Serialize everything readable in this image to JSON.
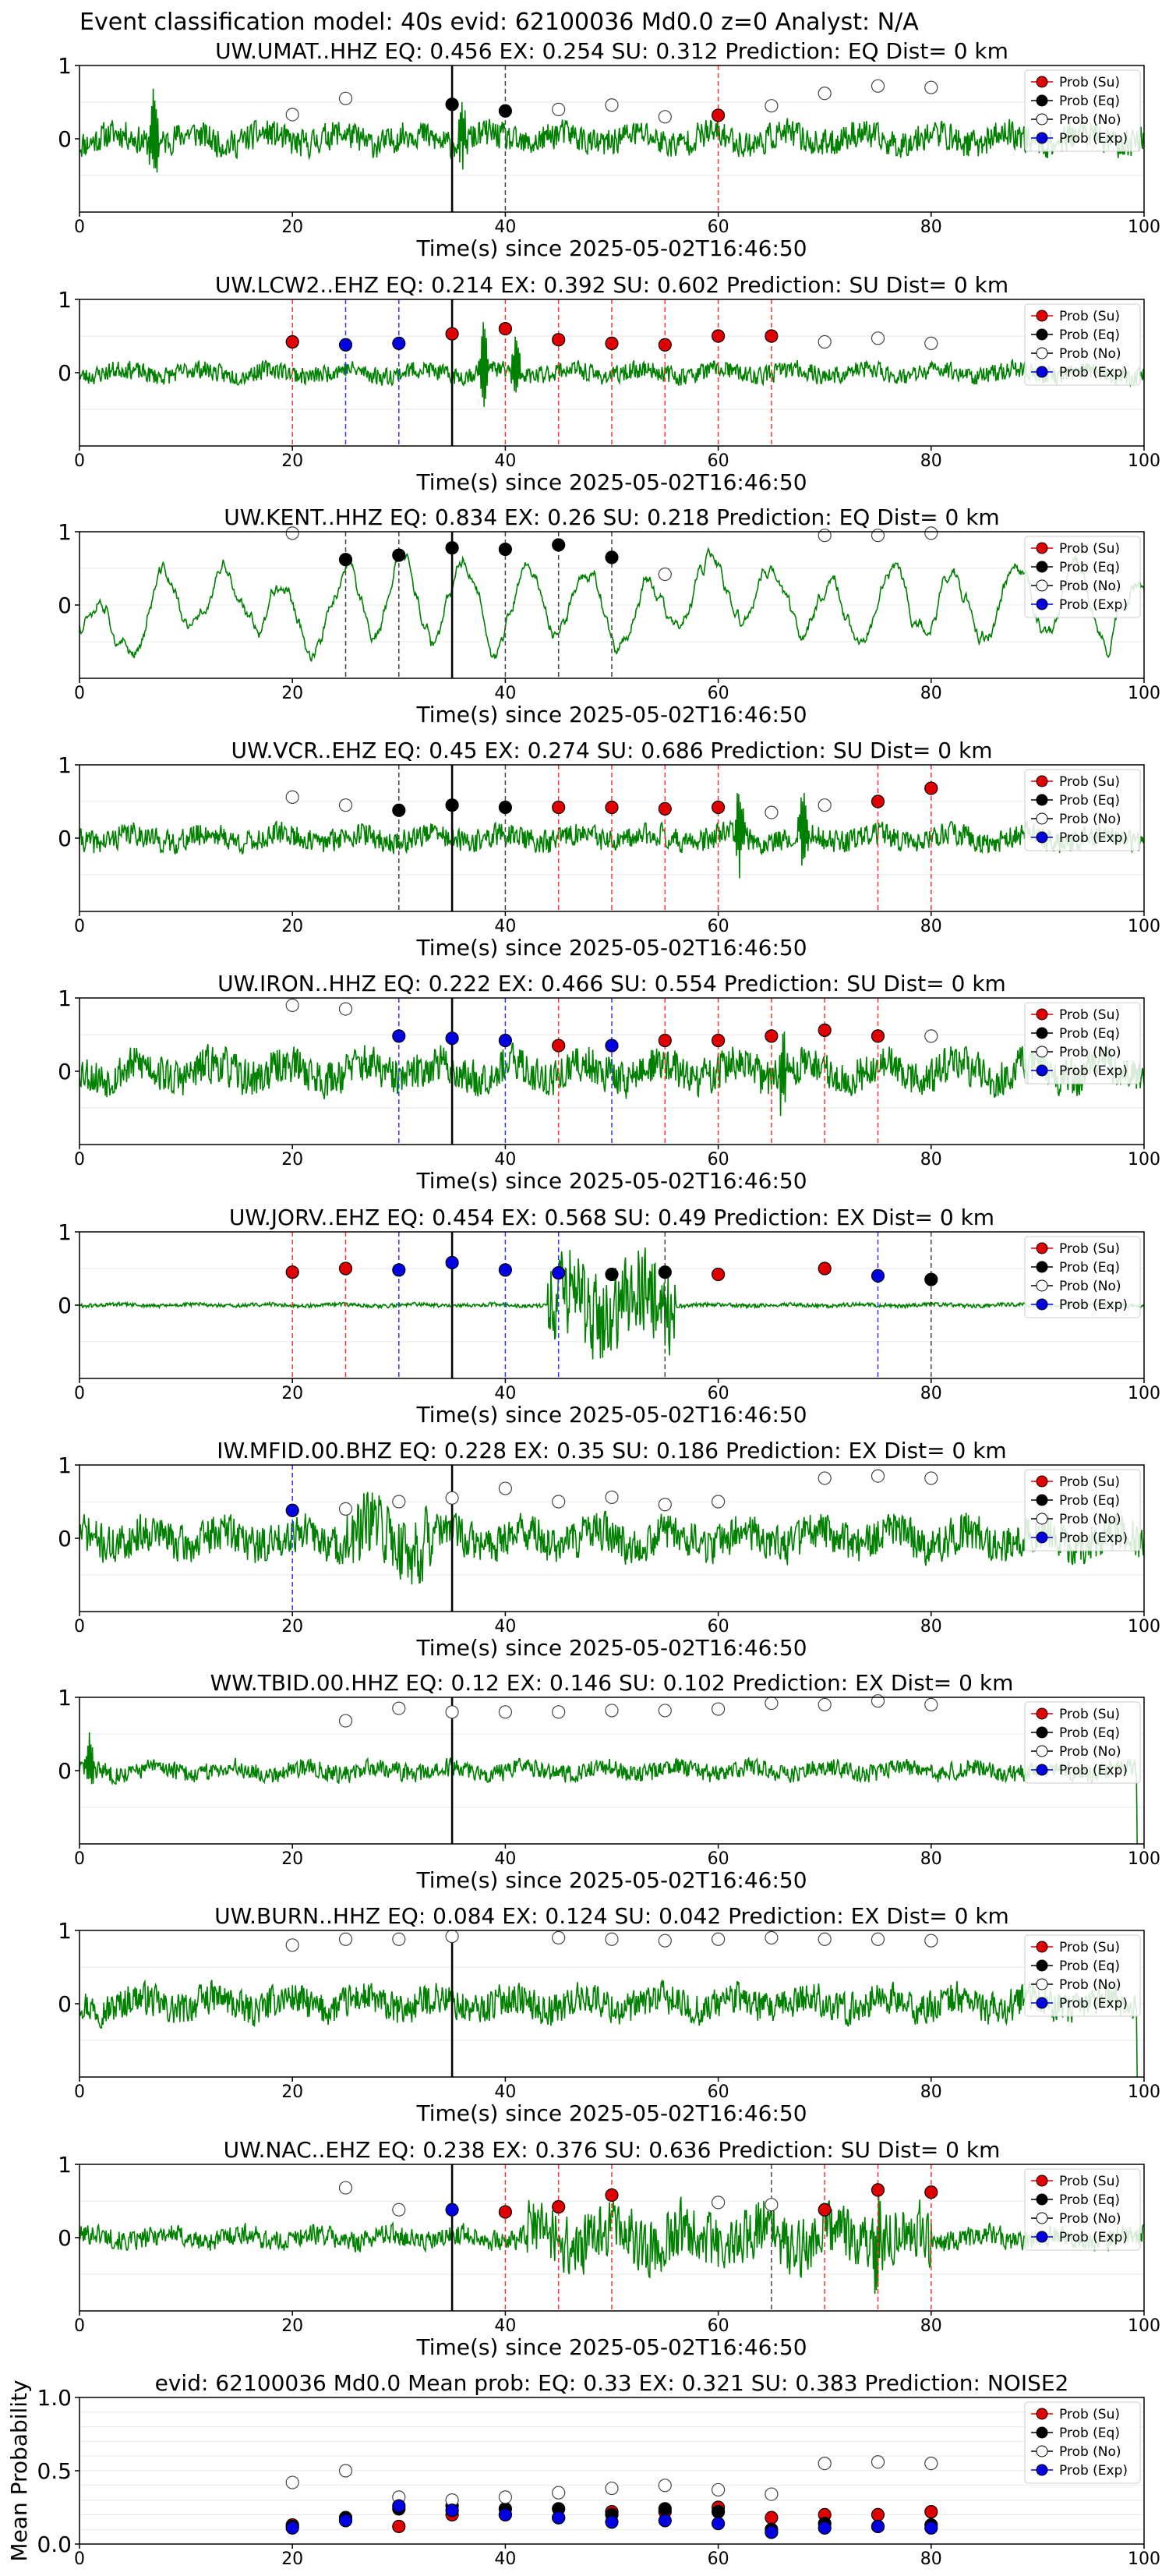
{
  "figure_title": "Event classification model: 40s evid: 62100036 Md0.0 z=0 Analyst: N/A",
  "legend_items": [
    {
      "label": "Prob (Su)",
      "color": "#e00000",
      "fill": "#e00000"
    },
    {
      "label": "Prob (Eq)",
      "color": "#000000",
      "fill": "#000000"
    },
    {
      "label": "Prob (No)",
      "color": "#000000",
      "fill": "#ffffff"
    },
    {
      "label": "Prob (Exp)",
      "color": "#0000e0",
      "fill": "#0000e0"
    }
  ],
  "colors": {
    "su": "#e00000",
    "eq": "#000000",
    "no": "#ffffff",
    "exp": "#0000e0",
    "waveform": "#008000"
  },
  "waveform_xlabel": "Time(s) since 2025-05-02T16:46:50",
  "waveform_xticks": [
    "0",
    "20",
    "40",
    "60",
    "80",
    "100"
  ],
  "waveform_yticks": [
    "1",
    "0"
  ],
  "mean_yticks": [
    "1.0",
    "0.5",
    "0.0"
  ],
  "mean_ylabel": "Mean Probability",
  "chart_data": [
    {
      "type": "scatter",
      "title": "UW.UMAT..HHZ   EQ: 0.456  EX: 0.254  SU: 0.312   Prediction: EQ    Dist= 0 km",
      "xlim": [
        0,
        100
      ],
      "ylim": [
        -1,
        1
      ],
      "origin_time": 35,
      "noise_amp": 0.22,
      "spikes": [
        [
          7,
          1.0
        ],
        [
          36,
          0.5
        ]
      ],
      "seed": 11,
      "su": [
        [
          60,
          0.32
        ]
      ],
      "eq": [
        [
          35,
          0.47
        ],
        [
          40,
          0.38
        ]
      ],
      "no": [
        [
          20,
          0.33
        ],
        [
          25,
          0.55
        ],
        [
          45,
          0.4
        ],
        [
          50,
          0.46
        ],
        [
          55,
          0.3
        ],
        [
          65,
          0.45
        ],
        [
          70,
          0.62
        ],
        [
          75,
          0.72
        ],
        [
          80,
          0.7
        ]
      ],
      "exp": [],
      "vlines": [
        {
          "x": 40,
          "c": "#444444"
        },
        {
          "x": 60,
          "c": "#ff3333"
        }
      ]
    },
    {
      "type": "scatter",
      "title": "UW.LCW2..EHZ   EQ: 0.214  EX: 0.392  SU: 0.602   Prediction: SU    Dist= 0 km",
      "xlim": [
        0,
        100
      ],
      "ylim": [
        -1,
        1
      ],
      "origin_time": 35,
      "noise_amp": 0.14,
      "spikes": [
        [
          38,
          0.8
        ],
        [
          41,
          0.6
        ]
      ],
      "seed": 23,
      "su": [
        [
          20,
          0.42
        ],
        [
          35,
          0.53
        ],
        [
          40,
          0.6
        ],
        [
          45,
          0.45
        ],
        [
          50,
          0.4
        ],
        [
          55,
          0.38
        ],
        [
          60,
          0.5
        ],
        [
          65,
          0.5
        ]
      ],
      "eq": [],
      "no": [
        [
          70,
          0.42
        ],
        [
          75,
          0.47
        ],
        [
          80,
          0.4
        ]
      ],
      "exp": [
        [
          25,
          0.38
        ],
        [
          30,
          0.4
        ]
      ],
      "vlines": [
        {
          "x": 20,
          "c": "#ff3333"
        },
        {
          "x": 25,
          "c": "#3333ff"
        },
        {
          "x": 30,
          "c": "#3333ff"
        },
        {
          "x": 40,
          "c": "#ff3333"
        },
        {
          "x": 45,
          "c": "#ff3333"
        },
        {
          "x": 50,
          "c": "#ff3333"
        },
        {
          "x": 55,
          "c": "#ff3333"
        },
        {
          "x": 60,
          "c": "#ff3333"
        },
        {
          "x": 65,
          "c": "#ff3333"
        }
      ]
    },
    {
      "type": "scatter",
      "title": "UW.KENT..HHZ   EQ: 0.834  EX: 0.26  SU: 0.218   Prediction: EQ    Dist= 0 km",
      "xlim": [
        0,
        100
      ],
      "ylim": [
        -1,
        1
      ],
      "origin_time": 35,
      "noise_amp": 0.5,
      "spikes": [],
      "seed": 37,
      "smooth": true,
      "su": [],
      "eq": [
        [
          25,
          0.62
        ],
        [
          30,
          0.68
        ],
        [
          35,
          0.78
        ],
        [
          40,
          0.76
        ],
        [
          45,
          0.82
        ],
        [
          50,
          0.65
        ]
      ],
      "no": [
        [
          20,
          0.98
        ],
        [
          55,
          0.42
        ],
        [
          70,
          0.95
        ],
        [
          75,
          0.95
        ],
        [
          80,
          0.98
        ]
      ],
      "exp": [],
      "vlines": [
        {
          "x": 25,
          "c": "#444444"
        },
        {
          "x": 30,
          "c": "#444444"
        },
        {
          "x": 40,
          "c": "#444444"
        },
        {
          "x": 45,
          "c": "#444444"
        },
        {
          "x": 50,
          "c": "#444444"
        }
      ]
    },
    {
      "type": "scatter",
      "title": "UW.VCR..EHZ   EQ: 0.45  EX: 0.274  SU: 0.686   Prediction: SU    Dist= 0 km",
      "xlim": [
        0,
        100
      ],
      "ylim": [
        -1,
        1
      ],
      "origin_time": 35,
      "noise_amp": 0.18,
      "spikes": [
        [
          62,
          0.9
        ],
        [
          68,
          0.8
        ]
      ],
      "seed": 41,
      "su": [
        [
          45,
          0.42
        ],
        [
          50,
          0.42
        ],
        [
          55,
          0.4
        ],
        [
          60,
          0.42
        ],
        [
          75,
          0.5
        ],
        [
          80,
          0.68
        ]
      ],
      "eq": [
        [
          30,
          0.38
        ],
        [
          35,
          0.45
        ],
        [
          40,
          0.42
        ]
      ],
      "no": [
        [
          20,
          0.56
        ],
        [
          25,
          0.45
        ],
        [
          65,
          0.35
        ],
        [
          70,
          0.45
        ]
      ],
      "exp": [],
      "vlines": [
        {
          "x": 30,
          "c": "#444444"
        },
        {
          "x": 40,
          "c": "#444444"
        },
        {
          "x": 45,
          "c": "#ff3333"
        },
        {
          "x": 50,
          "c": "#ff3333"
        },
        {
          "x": 55,
          "c": "#ff3333"
        },
        {
          "x": 60,
          "c": "#ff3333"
        },
        {
          "x": 75,
          "c": "#ff3333"
        },
        {
          "x": 80,
          "c": "#ff3333"
        }
      ]
    },
    {
      "type": "scatter",
      "title": "UW.IRON..HHZ   EQ: 0.222  EX: 0.466  SU: 0.554   Prediction: SU    Dist= 0 km",
      "xlim": [
        0,
        100
      ],
      "ylim": [
        -1,
        1
      ],
      "origin_time": 35,
      "noise_amp": 0.3,
      "spikes": [
        [
          66,
          0.8
        ]
      ],
      "seed": 53,
      "su": [
        [
          45,
          0.35
        ],
        [
          55,
          0.42
        ],
        [
          60,
          0.42
        ],
        [
          65,
          0.48
        ],
        [
          70,
          0.56
        ],
        [
          75,
          0.48
        ]
      ],
      "eq": [],
      "no": [
        [
          20,
          0.9
        ],
        [
          25,
          0.85
        ],
        [
          80,
          0.48
        ]
      ],
      "exp": [
        [
          30,
          0.48
        ],
        [
          35,
          0.45
        ],
        [
          40,
          0.42
        ],
        [
          50,
          0.35
        ]
      ],
      "vlines": [
        {
          "x": 30,
          "c": "#3333ff"
        },
        {
          "x": 40,
          "c": "#3333ff"
        },
        {
          "x": 45,
          "c": "#ff3333"
        },
        {
          "x": 50,
          "c": "#3333ff"
        },
        {
          "x": 55,
          "c": "#ff3333"
        },
        {
          "x": 60,
          "c": "#ff3333"
        },
        {
          "x": 65,
          "c": "#ff3333"
        },
        {
          "x": 70,
          "c": "#ff3333"
        },
        {
          "x": 75,
          "c": "#ff3333"
        }
      ]
    },
    {
      "type": "scatter",
      "title": "UW.JORV..EHZ   EQ: 0.454  EX: 0.568  SU: 0.49   Prediction: EX    Dist= 0 km",
      "xlim": [
        0,
        100
      ],
      "ylim": [
        -1,
        1
      ],
      "origin_time": 35,
      "noise_amp": 0.03,
      "burst": [
        44,
        56,
        0.7
      ],
      "spikes": [],
      "seed": 61,
      "su": [
        [
          20,
          0.45
        ],
        [
          25,
          0.5
        ],
        [
          60,
          0.42
        ],
        [
          70,
          0.5
        ]
      ],
      "eq": [
        [
          50,
          0.42
        ],
        [
          55,
          0.45
        ],
        [
          80,
          0.35
        ]
      ],
      "no": [],
      "exp": [
        [
          30,
          0.48
        ],
        [
          35,
          0.58
        ],
        [
          40,
          0.48
        ],
        [
          45,
          0.44
        ],
        [
          75,
          0.4
        ]
      ],
      "vlines": [
        {
          "x": 20,
          "c": "#ff3333"
        },
        {
          "x": 25,
          "c": "#ff3333"
        },
        {
          "x": 30,
          "c": "#3333ff"
        },
        {
          "x": 40,
          "c": "#3333ff"
        },
        {
          "x": 45,
          "c": "#3333ff"
        },
        {
          "x": 55,
          "c": "#444444"
        },
        {
          "x": 75,
          "c": "#3333ff"
        },
        {
          "x": 80,
          "c": "#444444"
        }
      ]
    },
    {
      "type": "scatter",
      "title": "IW.MFID.00.BHZ   EQ: 0.228  EX: 0.35  SU: 0.186   Prediction: EX    Dist= 0 km",
      "xlim": [
        0,
        100
      ],
      "ylim": [
        -1,
        1
      ],
      "origin_time": 35,
      "noise_amp": 0.3,
      "burst": [
        25,
        33,
        0.55
      ],
      "spikes": [],
      "seed": 71,
      "su": [],
      "eq": [],
      "no": [
        [
          25,
          0.4
        ],
        [
          30,
          0.5
        ],
        [
          35,
          0.55
        ],
        [
          40,
          0.68
        ],
        [
          45,
          0.5
        ],
        [
          50,
          0.56
        ],
        [
          55,
          0.46
        ],
        [
          60,
          0.5
        ],
        [
          70,
          0.82
        ],
        [
          75,
          0.85
        ],
        [
          80,
          0.82
        ]
      ],
      "exp": [
        [
          20,
          0.38
        ]
      ],
      "vlines": [
        {
          "x": 20,
          "c": "#3333ff"
        }
      ]
    },
    {
      "type": "scatter",
      "title": "WW.TBID.00.HHZ   EQ: 0.12  EX: 0.146  SU: 0.102   Prediction: EX    Dist= 0 km",
      "xlim": [
        0,
        100
      ],
      "ylim": [
        -1,
        1
      ],
      "origin_time": 35,
      "noise_amp": 0.14,
      "spikes": [
        [
          1,
          0.55
        ]
      ],
      "seed": 83,
      "endspike": true,
      "su": [],
      "eq": [],
      "no": [
        [
          25,
          0.68
        ],
        [
          30,
          0.85
        ],
        [
          35,
          0.8
        ],
        [
          40,
          0.8
        ],
        [
          45,
          0.8
        ],
        [
          50,
          0.82
        ],
        [
          55,
          0.82
        ],
        [
          60,
          0.84
        ],
        [
          65,
          0.92
        ],
        [
          70,
          0.9
        ],
        [
          75,
          0.95
        ],
        [
          80,
          0.9
        ]
      ],
      "exp": [],
      "vlines": []
    },
    {
      "type": "scatter",
      "title": "UW.BURN..HHZ   EQ: 0.084  EX: 0.124  SU: 0.042   Prediction: EX    Dist= 0 km",
      "xlim": [
        0,
        100
      ],
      "ylim": [
        -1,
        1
      ],
      "origin_time": 35,
      "noise_amp": 0.25,
      "spikes": [],
      "seed": 97,
      "endspike": true,
      "su": [],
      "eq": [],
      "no": [
        [
          20,
          0.8
        ],
        [
          25,
          0.88
        ],
        [
          30,
          0.88
        ],
        [
          35,
          0.92
        ],
        [
          45,
          0.9
        ],
        [
          50,
          0.88
        ],
        [
          55,
          0.86
        ],
        [
          60,
          0.88
        ],
        [
          65,
          0.9
        ],
        [
          70,
          0.88
        ],
        [
          75,
          0.88
        ],
        [
          80,
          0.86
        ]
      ],
      "exp": [],
      "vlines": []
    },
    {
      "type": "scatter",
      "title": "UW.NAC..EHZ   EQ: 0.238  EX: 0.376  SU: 0.636   Prediction: SU    Dist= 0 km",
      "xlim": [
        0,
        100
      ],
      "ylim": [
        -1,
        1
      ],
      "origin_time": 35,
      "noise_amp": 0.16,
      "burst": [
        42,
        80,
        0.45
      ],
      "spikes": [
        [
          75,
          0.9
        ]
      ],
      "seed": 101,
      "su": [
        [
          40,
          0.35
        ],
        [
          45,
          0.42
        ],
        [
          50,
          0.58
        ],
        [
          70,
          0.38
        ],
        [
          75,
          0.65
        ],
        [
          80,
          0.62
        ]
      ],
      "eq": [],
      "no": [
        [
          25,
          0.68
        ],
        [
          30,
          0.38
        ],
        [
          60,
          0.48
        ],
        [
          65,
          0.45
        ]
      ],
      "exp": [
        [
          35,
          0.38
        ]
      ],
      "vlines": [
        {
          "x": 40,
          "c": "#ff3333"
        },
        {
          "x": 45,
          "c": "#ff3333"
        },
        {
          "x": 50,
          "c": "#ff3333"
        },
        {
          "x": 65,
          "c": "#444444"
        },
        {
          "x": 70,
          "c": "#ff3333"
        },
        {
          "x": 75,
          "c": "#ff3333"
        },
        {
          "x": 80,
          "c": "#ff3333"
        }
      ]
    },
    {
      "type": "scatter",
      "title": "evid: 62100036  Md0.0   Mean prob:   EQ: 0.33  EX: 0.321  SU: 0.383   Prediction: NOISE2",
      "xlim": [
        0,
        100
      ],
      "ylim": [
        0,
        1
      ],
      "ylabel": "Mean Probability",
      "su": [
        [
          20,
          0.13
        ],
        [
          25,
          0.17
        ],
        [
          30,
          0.12
        ],
        [
          35,
          0.2
        ],
        [
          40,
          0.2
        ],
        [
          45,
          0.18
        ],
        [
          50,
          0.22
        ],
        [
          55,
          0.22
        ],
        [
          60,
          0.25
        ],
        [
          65,
          0.18
        ],
        [
          70,
          0.2
        ],
        [
          75,
          0.2
        ],
        [
          80,
          0.22
        ]
      ],
      "eq": [
        [
          20,
          0.12
        ],
        [
          25,
          0.18
        ],
        [
          30,
          0.24
        ],
        [
          35,
          0.26
        ],
        [
          40,
          0.24
        ],
        [
          45,
          0.24
        ],
        [
          50,
          0.2
        ],
        [
          55,
          0.24
        ],
        [
          60,
          0.22
        ],
        [
          65,
          0.1
        ],
        [
          70,
          0.14
        ],
        [
          75,
          0.12
        ],
        [
          80,
          0.13
        ]
      ],
      "no": [
        [
          20,
          0.42
        ],
        [
          25,
          0.5
        ],
        [
          30,
          0.32
        ],
        [
          35,
          0.3
        ],
        [
          40,
          0.32
        ],
        [
          45,
          0.35
        ],
        [
          50,
          0.38
        ],
        [
          55,
          0.4
        ],
        [
          60,
          0.37
        ],
        [
          65,
          0.34
        ],
        [
          70,
          0.55
        ],
        [
          75,
          0.56
        ],
        [
          80,
          0.55
        ]
      ],
      "exp": [
        [
          20,
          0.11
        ],
        [
          25,
          0.16
        ],
        [
          30,
          0.26
        ],
        [
          35,
          0.23
        ],
        [
          40,
          0.2
        ],
        [
          45,
          0.18
        ],
        [
          50,
          0.15
        ],
        [
          55,
          0.16
        ],
        [
          60,
          0.14
        ],
        [
          65,
          0.08
        ],
        [
          70,
          0.11
        ],
        [
          75,
          0.12
        ],
        [
          80,
          0.11
        ]
      ]
    }
  ]
}
